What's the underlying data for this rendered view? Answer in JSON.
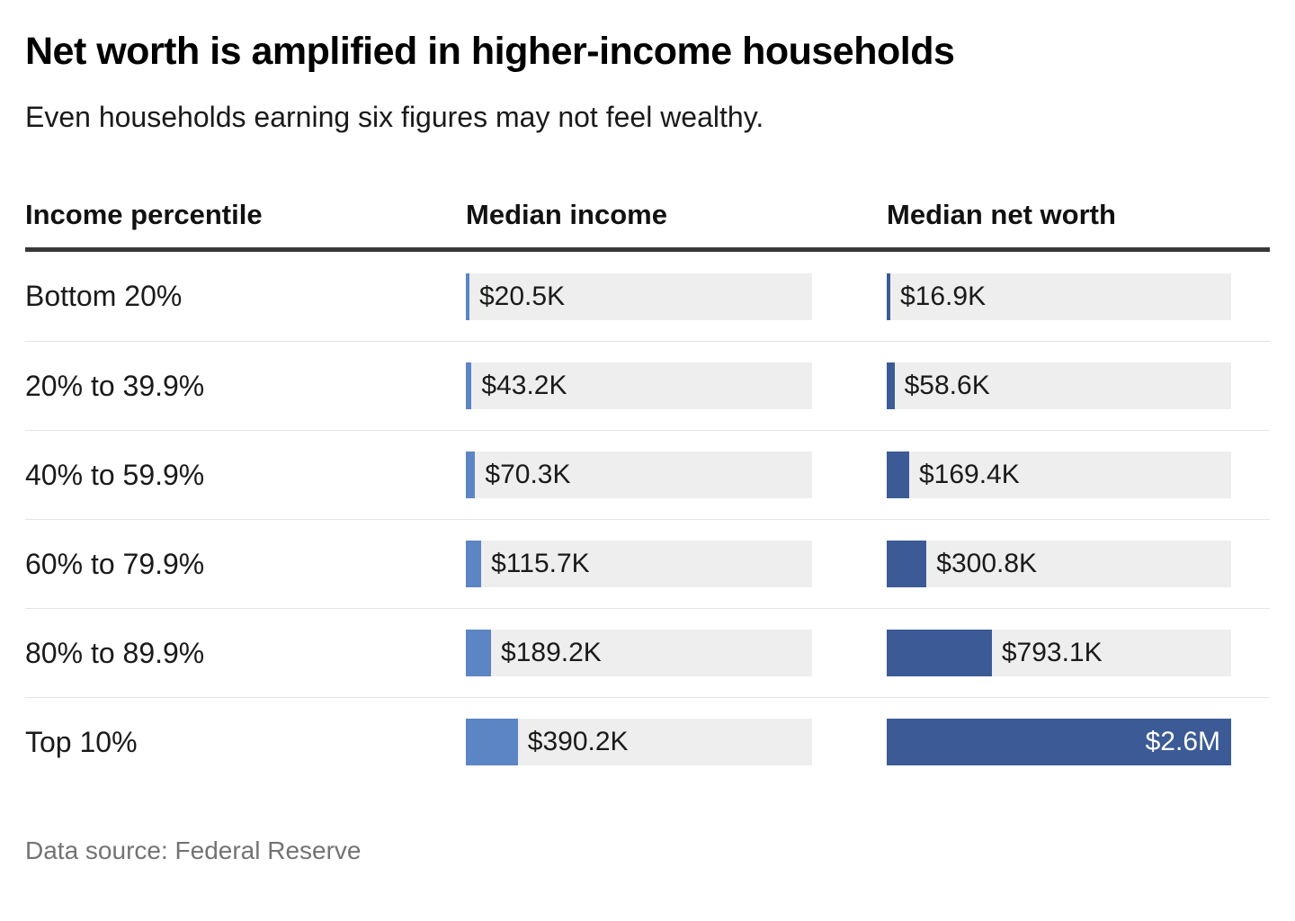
{
  "header": {
    "title": "Net worth is amplified in higher-income households",
    "subtitle": "Even households earning six figures may not feel wealthy."
  },
  "table": {
    "col_percentile": "Income percentile",
    "col_income": "Median income",
    "col_networth": "Median net worth"
  },
  "footer": {
    "source": "Data source: Federal Reserve"
  },
  "colors": {
    "income_bar": "#5b85c4",
    "networth_bar": "#3c5b96",
    "track": "#eeeeee",
    "header_rule": "#383838",
    "row_divider": "#e4e4e4",
    "source_text": "#737373"
  },
  "chart_data": {
    "type": "bar",
    "orientation": "horizontal",
    "title": "Net worth is amplified in higher-income households",
    "subtitle": "Even households earning six figures may not feel wealthy.",
    "source": "Data source: Federal Reserve",
    "scale_max": 2600000,
    "legend_position": "column-headers",
    "grid": false,
    "categories": [
      "Bottom 20%",
      "20% to 39.9%",
      "40% to 59.9%",
      "60% to 79.9%",
      "80% to 89.9%",
      "Top 10%"
    ],
    "series": [
      {
        "name": "Median income",
        "color": "#5b85c4",
        "values": [
          20500,
          43200,
          70300,
          115700,
          189200,
          390200
        ],
        "labels": [
          "$20.5K",
          "$43.2K",
          "$70.3K",
          "$115.7K",
          "$189.2K",
          "$390.2K"
        ]
      },
      {
        "name": "Median net worth",
        "color": "#3c5b96",
        "values": [
          16900,
          58600,
          169400,
          300800,
          793100,
          2600000
        ],
        "labels": [
          "$16.9K",
          "$58.6K",
          "$169.4K",
          "$300.8K",
          "$793.1K",
          "$2.6M"
        ]
      }
    ]
  }
}
